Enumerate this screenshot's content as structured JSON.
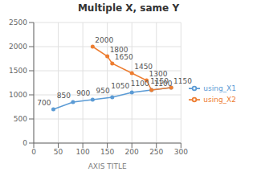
{
  "chart_data": {
    "type": "line",
    "title": "Multiple  X, same  Y",
    "xlabel": "AXIS TITLE",
    "series": [
      {
        "name": "using_X1",
        "color": "#5b9bd5",
        "marker": "circle",
        "x": [
          40,
          80,
          120,
          160,
          200,
          240,
          280
        ],
        "values": [
          700,
          850,
          900,
          950,
          1050,
          1100,
          1150
        ]
      },
      {
        "name": "using_X2",
        "color": "#ed7d31",
        "marker": "circle",
        "x": [
          120,
          150,
          160,
          200,
          230,
          240,
          280
        ],
        "values": [
          2000,
          1800,
          1650,
          1450,
          1300,
          1100,
          1150
        ]
      }
    ],
    "xlim": [
      0,
      300
    ],
    "ylim": [
      0,
      2500
    ],
    "xticks": [
      0,
      50,
      100,
      150,
      200,
      250,
      300
    ],
    "yticks": [
      0,
      500,
      1000,
      1500,
      2000,
      2500
    ],
    "grid": true,
    "legend": "right",
    "data_labels": true
  }
}
